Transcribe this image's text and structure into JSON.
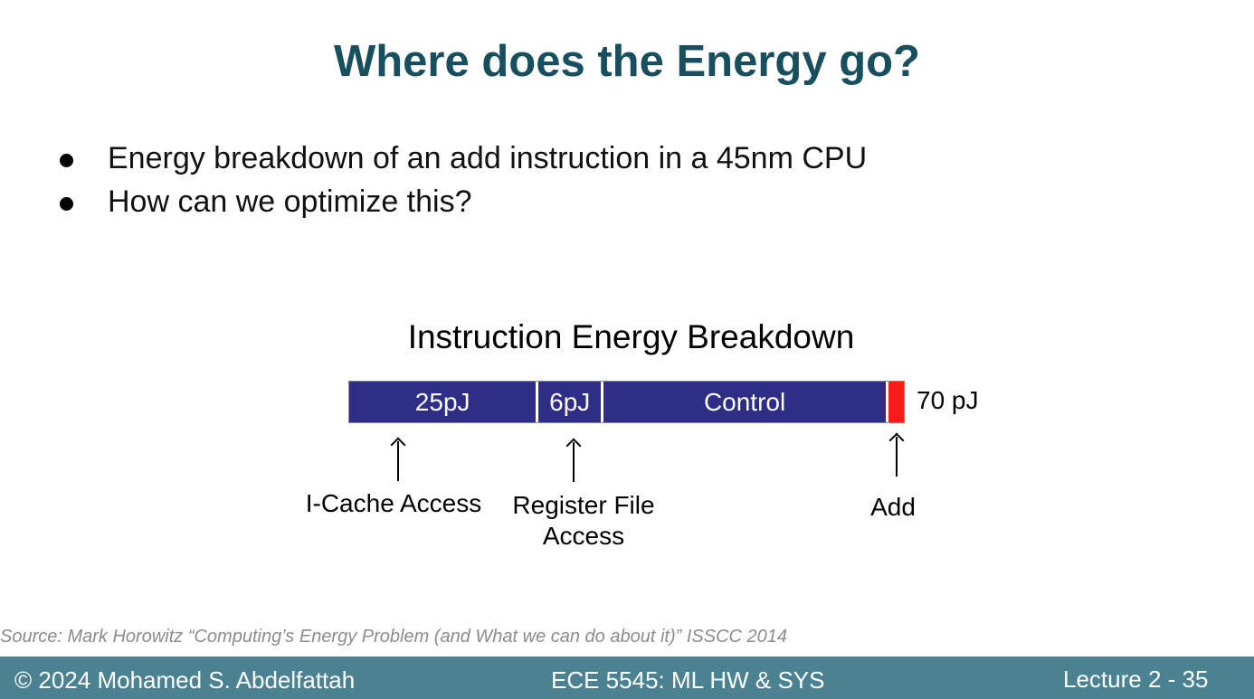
{
  "slide": {
    "title": "Where does the Energy go?",
    "bullets": [
      "Energy breakdown of an add instruction in a 45nm CPU",
      "How can we optimize this?"
    ]
  },
  "figure": {
    "title": "Instruction Energy Breakdown",
    "segments": [
      {
        "label": "25pJ",
        "value": 25,
        "color": "#2e2e86"
      },
      {
        "label": "6pJ",
        "value": 6,
        "color": "#2e2e86"
      },
      {
        "label": "Control",
        "value": 38,
        "color": "#2e2e86"
      },
      {
        "label": "",
        "value": 1,
        "color": "#ff1a1a"
      }
    ],
    "total": "70 pJ",
    "annotations": {
      "icache": "I-Cache Access",
      "regfile_line1": "Register File",
      "regfile_line2": "Access",
      "add": "Add"
    }
  },
  "source": "Source: Mark Horowitz “Computing’s Energy Problem (and What we can do about it)” ISSCC 2014",
  "footer": {
    "left": "© 2024 Mohamed S. Abdelfattah",
    "center": "ECE 5545: ML HW & SYS",
    "right": "Lecture 2 - 35"
  }
}
